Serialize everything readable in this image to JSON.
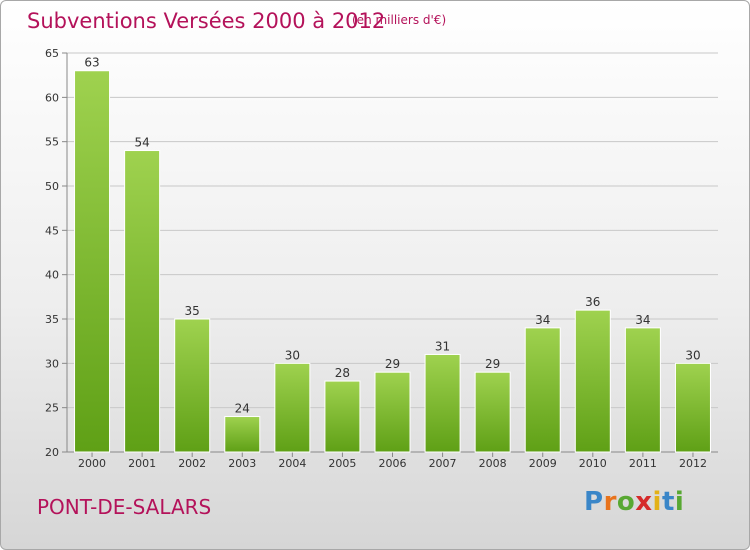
{
  "header": {
    "title": "Subventions Versées 2000 à 2012",
    "unit_note": "(en milliers d'€)"
  },
  "footer": {
    "commune": "PONT-DE-SALARS",
    "logo_letters": [
      {
        "ch": "P",
        "color": "#3a86c8"
      },
      {
        "ch": "r",
        "color": "#e8731c"
      },
      {
        "ch": "o",
        "color": "#58a832"
      },
      {
        "ch": "x",
        "color": "#d52a2a"
      },
      {
        "ch": "i",
        "color": "#e3b117"
      },
      {
        "ch": "t",
        "color": "#3a86c8"
      },
      {
        "ch": "i",
        "color": "#58a832"
      }
    ]
  },
  "colors": {
    "accent": "#b4125a",
    "bar_top": "#9fd24f",
    "bar_bottom": "#5fa016",
    "grid": "#c8c8c8"
  },
  "chart_data": {
    "type": "bar",
    "categories": [
      "2000",
      "2001",
      "2002",
      "2003",
      "2004",
      "2005",
      "2006",
      "2007",
      "2008",
      "2009",
      "2010",
      "2011",
      "2012"
    ],
    "values": [
      63,
      54,
      35,
      24,
      30,
      28,
      29,
      31,
      29,
      34,
      36,
      34,
      30
    ],
    "data_labels": [
      "63",
      "54",
      "35",
      "24",
      "30",
      "28",
      "29",
      "31",
      "29",
      "34",
      "36",
      "34",
      "30"
    ],
    "ylim": [
      20,
      65
    ],
    "yticks": [
      20,
      25,
      30,
      35,
      40,
      45,
      50,
      55,
      60,
      65
    ],
    "grid": true,
    "legend": "none"
  }
}
